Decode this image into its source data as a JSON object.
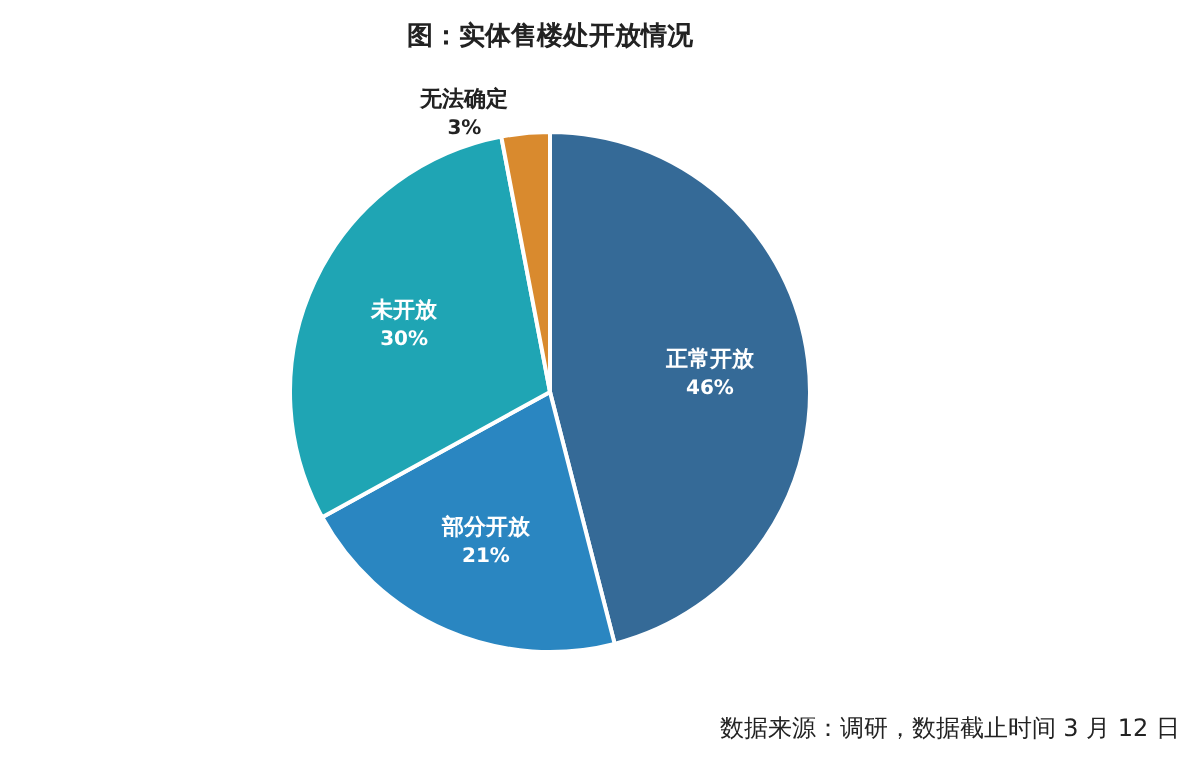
{
  "chart_data": {
    "type": "pie",
    "title": "图：实体售楼处开放情况",
    "categories": [
      "正常开放",
      "部分开放",
      "未开放",
      "无法确定"
    ],
    "values": [
      46,
      21,
      30,
      3
    ],
    "colors": [
      "#356a97",
      "#2a86c1",
      "#1fa5b4",
      "#d98a2e"
    ],
    "value_labels": [
      "46%",
      "21%",
      "30%",
      "3%"
    ],
    "annotations": [
      "数据来源：调研，数据截止时间 3 月 12 日"
    ]
  }
}
